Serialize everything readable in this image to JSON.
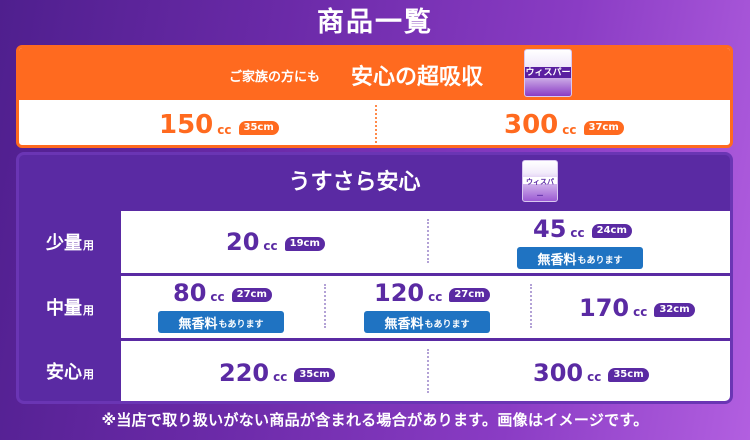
{
  "page": {
    "title": "商品一覧"
  },
  "section1": {
    "subheading": "ご家族の方にも",
    "heading": "安心の超吸収",
    "package_label": "ウィスパー",
    "items": [
      {
        "amount": "150",
        "unit": "cc",
        "length": "35cm"
      },
      {
        "amount": "300",
        "unit": "cc",
        "length": "37cm"
      }
    ],
    "accent_color": "#ff6a1f"
  },
  "section2": {
    "heading": "うすさら安心",
    "package_label": "ウィスパー",
    "accent_color": "#5a2aa3",
    "rows": [
      {
        "label": "少量",
        "suffix": "用",
        "items": [
          {
            "amount": "20",
            "unit": "cc",
            "length": "19cm"
          },
          {
            "amount": "45",
            "unit": "cc",
            "length": "24cm",
            "note_main": "無香料",
            "note_sub": "もあります"
          }
        ]
      },
      {
        "label": "中量",
        "suffix": "用",
        "items": [
          {
            "amount": "80",
            "unit": "cc",
            "length": "27cm",
            "note_main": "無香料",
            "note_sub": "もあります"
          },
          {
            "amount": "120",
            "unit": "cc",
            "length": "27cm",
            "note_main": "無香料",
            "note_sub": "もあります"
          },
          {
            "amount": "170",
            "unit": "cc",
            "length": "32cm"
          }
        ]
      },
      {
        "label": "安心",
        "suffix": "用",
        "items": [
          {
            "amount": "220",
            "unit": "cc",
            "length": "35cm"
          },
          {
            "amount": "300",
            "unit": "cc",
            "length": "35cm"
          }
        ]
      }
    ]
  },
  "footnote": "※当店で取り扱いがない商品が含まれる場合があります。画像はイメージです。"
}
